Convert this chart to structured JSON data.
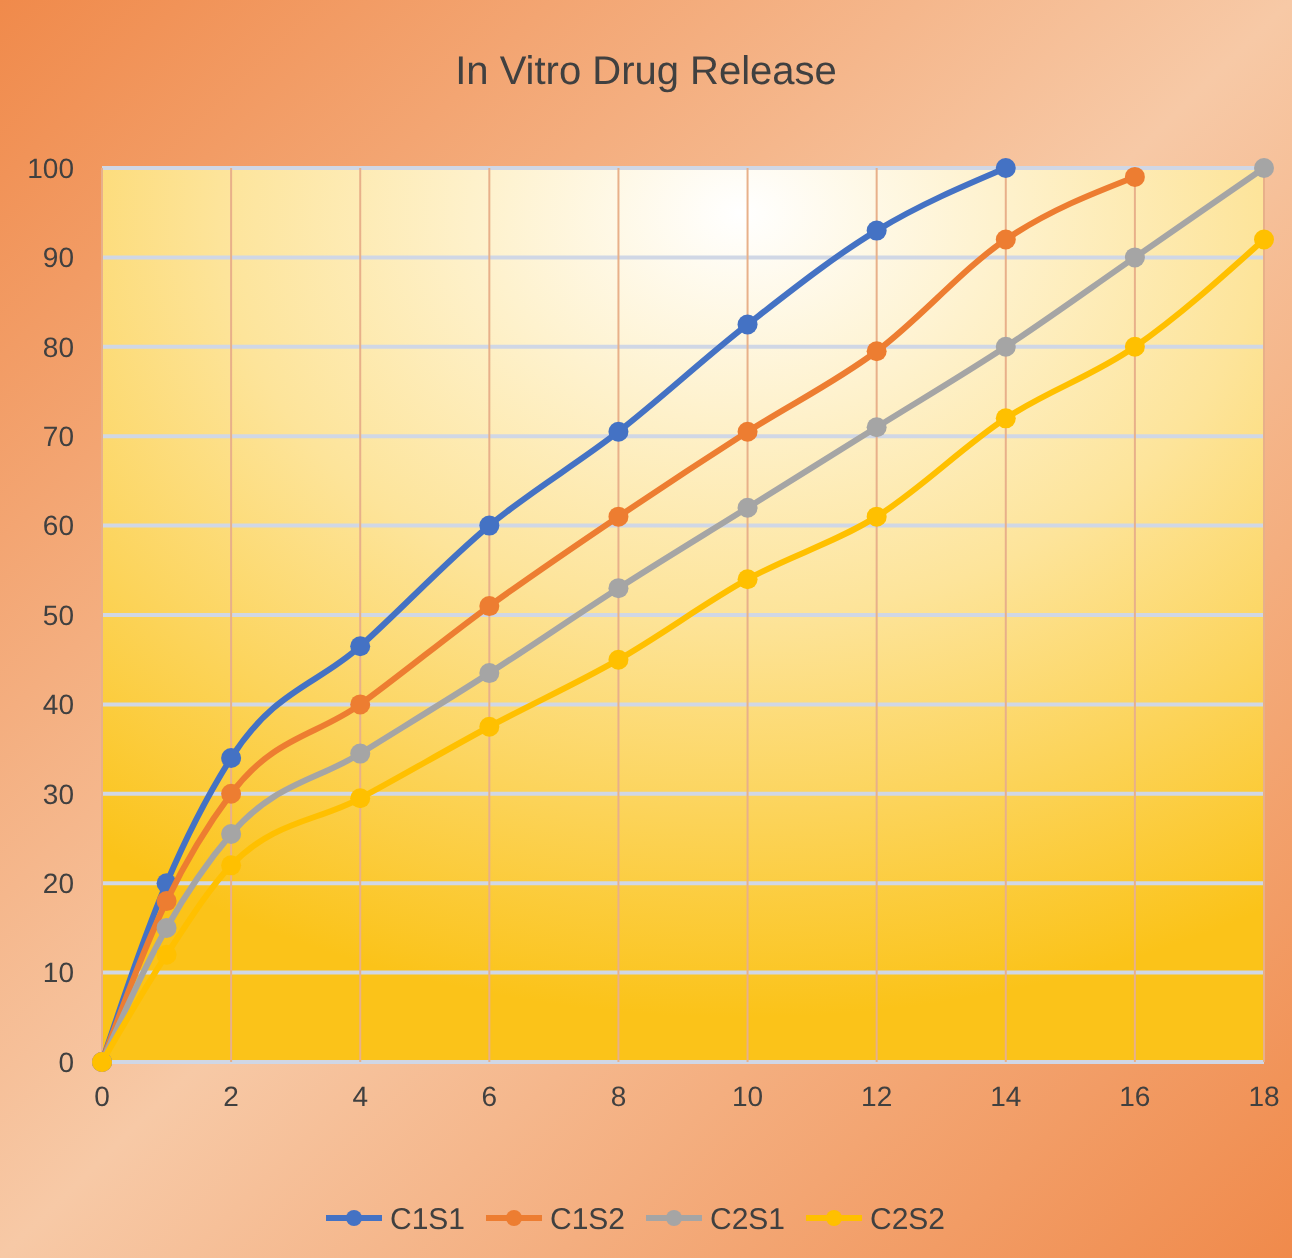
{
  "chart_data": {
    "type": "line",
    "title": "In Vitro Drug Release",
    "x": [
      0,
      1,
      2,
      4,
      6,
      8,
      10,
      12,
      14,
      16,
      18
    ],
    "series": [
      {
        "name": "C1S1",
        "color": "#4472c4",
        "values": [
          0,
          20,
          34,
          46.5,
          60,
          70.5,
          82.5,
          93,
          100,
          null,
          null
        ]
      },
      {
        "name": "C1S2",
        "color": "#ed7d31",
        "values": [
          0,
          18,
          30,
          40,
          51,
          61,
          70.5,
          79.5,
          92,
          99,
          null
        ]
      },
      {
        "name": "C2S1",
        "color": "#a5a5a5",
        "values": [
          0,
          15,
          25.5,
          34.5,
          43.5,
          53,
          62,
          71,
          80,
          90,
          100
        ]
      },
      {
        "name": "C2S2",
        "color": "#ffc000",
        "values": [
          0,
          12,
          22,
          29.5,
          37.5,
          45,
          54,
          61,
          72,
          80,
          92
        ]
      }
    ],
    "xlim": [
      0,
      18
    ],
    "xticks": [
      0,
      2,
      4,
      6,
      8,
      10,
      12,
      14,
      16,
      18
    ],
    "ylim": [
      0,
      100
    ],
    "yticks": [
      0,
      10,
      20,
      30,
      40,
      50,
      60,
      70,
      80,
      90,
      100
    ],
    "grid": true,
    "legend": "bottom",
    "marker": "circle",
    "line_style": "solid"
  }
}
